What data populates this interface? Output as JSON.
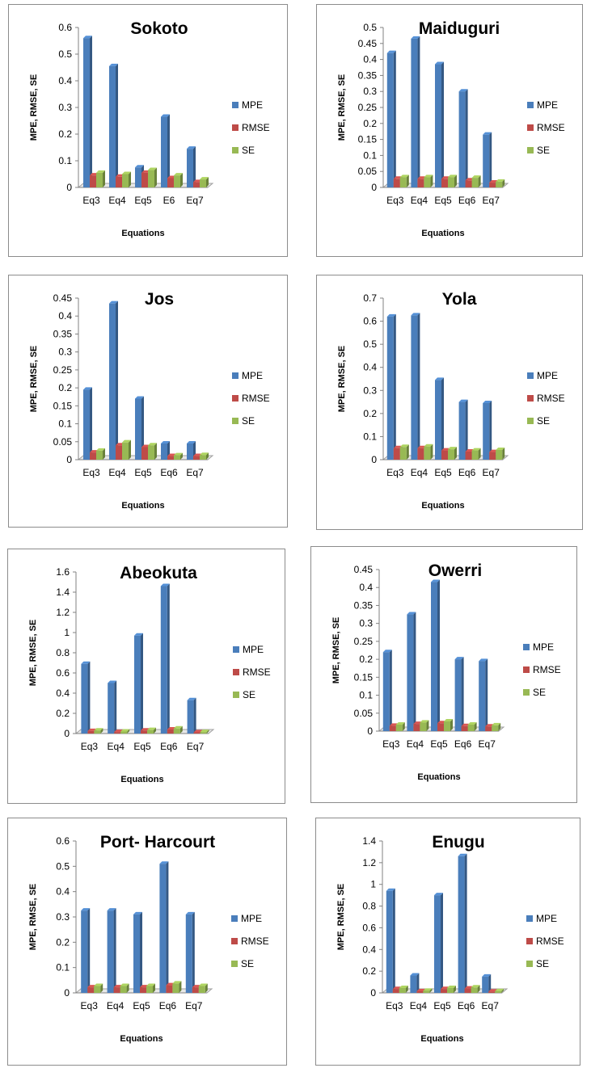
{
  "legend_colors": {
    "MPE": "#4a7ebb",
    "RMSE": "#be4b48",
    "SE": "#98b954"
  },
  "chart_data": [
    {
      "type": "bar",
      "title": "Sokoto",
      "xlabel": "Equations",
      "ylabel": "MPE, RMSE, SE",
      "categories": [
        "Eq3",
        "Eq4",
        "Eq5",
        "E6",
        "Eq7"
      ],
      "yticks": [
        "0",
        "0.1",
        "0.2",
        "0.3",
        "0.4",
        "0.5",
        "0.6"
      ],
      "ylim": [
        0,
        0.6
      ],
      "series": [
        {
          "name": "MPE",
          "values": [
            0.56,
            0.455,
            0.075,
            0.265,
            0.145
          ]
        },
        {
          "name": "RMSE",
          "values": [
            0.045,
            0.04,
            0.055,
            0.035,
            0.02
          ]
        },
        {
          "name": "SE",
          "values": [
            0.055,
            0.05,
            0.065,
            0.045,
            0.03
          ]
        }
      ]
    },
    {
      "type": "bar",
      "title": "Maiduguri",
      "xlabel": "Equations",
      "ylabel": "MPE, RMSE, SE",
      "categories": [
        "Eq3",
        "Eq4",
        "Eq5",
        "Eq6",
        "Eq7"
      ],
      "yticks": [
        "0",
        "0.05",
        "0.1",
        "0.15",
        "0.2",
        "0.25",
        "0.3",
        "0.35",
        "0.4",
        "0.45",
        "0.5"
      ],
      "ylim": [
        0,
        0.5
      ],
      "series": [
        {
          "name": "MPE",
          "values": [
            0.42,
            0.465,
            0.385,
            0.3,
            0.165
          ]
        },
        {
          "name": "RMSE",
          "values": [
            0.027,
            0.027,
            0.027,
            0.022,
            0.015
          ]
        },
        {
          "name": "SE",
          "values": [
            0.032,
            0.032,
            0.032,
            0.03,
            0.018
          ]
        }
      ]
    },
    {
      "type": "bar",
      "title": "Jos",
      "xlabel": "Equations",
      "ylabel": "MPE, RMSE, SE",
      "categories": [
        "Eq3",
        "Eq4",
        "Eq5",
        "Eq6",
        "Eq7"
      ],
      "yticks": [
        "0",
        "0.05",
        "0.1",
        "0.15",
        "0.2",
        "0.25",
        "0.3",
        "0.35",
        "0.4",
        "0.45"
      ],
      "ylim": [
        0,
        0.45
      ],
      "series": [
        {
          "name": "MPE",
          "values": [
            0.195,
            0.435,
            0.17,
            0.045,
            0.045
          ]
        },
        {
          "name": "RMSE",
          "values": [
            0.02,
            0.04,
            0.035,
            0.01,
            0.01
          ]
        },
        {
          "name": "SE",
          "values": [
            0.025,
            0.048,
            0.04,
            0.012,
            0.013
          ]
        }
      ]
    },
    {
      "type": "bar",
      "title": "Yola",
      "xlabel": "Equations",
      "ylabel": "MPE, RMSE, SE",
      "categories": [
        "Eq3",
        "Eq4",
        "Eq5",
        "Eq6",
        "Eq7"
      ],
      "yticks": [
        "0",
        "0.1",
        "0.2",
        "0.3",
        "0.4",
        "0.5",
        "0.6",
        "0.7"
      ],
      "ylim": [
        0,
        0.7
      ],
      "series": [
        {
          "name": "MPE",
          "values": [
            0.62,
            0.625,
            0.345,
            0.25,
            0.245
          ]
        },
        {
          "name": "RMSE",
          "values": [
            0.05,
            0.05,
            0.04,
            0.035,
            0.033
          ]
        },
        {
          "name": "SE",
          "values": [
            0.055,
            0.057,
            0.045,
            0.04,
            0.042
          ]
        }
      ]
    },
    {
      "type": "bar",
      "title": "Abeokuta",
      "xlabel": "Equations",
      "ylabel": "MPE, RMSE, SE",
      "categories": [
        "Eq3",
        "Eq4",
        "Eq5",
        "Eq6",
        "Eq7"
      ],
      "yticks": [
        "0",
        "0.2",
        "0.4",
        "0.6",
        "0.8",
        "1",
        "1.2",
        "1.4",
        "1.6"
      ],
      "ylim": [
        0,
        1.6
      ],
      "series": [
        {
          "name": "MPE",
          "values": [
            0.69,
            0.5,
            0.97,
            1.46,
            0.33
          ]
        },
        {
          "name": "RMSE",
          "values": [
            0.025,
            0.015,
            0.03,
            0.04,
            0.012
          ]
        },
        {
          "name": "SE",
          "values": [
            0.03,
            0.02,
            0.035,
            0.05,
            0.015
          ]
        }
      ]
    },
    {
      "type": "bar",
      "title": "Owerri",
      "xlabel": "Equations",
      "ylabel": "MPE, RMSE, SE",
      "categories": [
        "Eq3",
        "Eq4",
        "Eq5",
        "Eq6",
        "Eq7"
      ],
      "yticks": [
        "0",
        "0.05",
        "0.1",
        "0.15",
        "0.2",
        "0.25",
        "0.3",
        "0.35",
        "0.4",
        "0.45"
      ],
      "ylim": [
        0,
        0.45
      ],
      "series": [
        {
          "name": "MPE",
          "values": [
            0.22,
            0.325,
            0.415,
            0.2,
            0.195
          ]
        },
        {
          "name": "RMSE",
          "values": [
            0.015,
            0.02,
            0.022,
            0.014,
            0.013
          ]
        },
        {
          "name": "SE",
          "values": [
            0.018,
            0.024,
            0.027,
            0.018,
            0.016
          ]
        }
      ]
    },
    {
      "type": "bar",
      "title": "Port- Harcourt",
      "xlabel": "Equations",
      "ylabel": "MPE, RMSE, SE",
      "categories": [
        "Eq3",
        "Eq4",
        "Eq5",
        "Eq6",
        "Eq7"
      ],
      "yticks": [
        "0",
        "0.1",
        "0.2",
        "0.3",
        "0.4",
        "0.5",
        "0.6"
      ],
      "ylim": [
        0,
        0.6
      ],
      "series": [
        {
          "name": "MPE",
          "values": [
            0.325,
            0.325,
            0.31,
            0.51,
            0.31
          ]
        },
        {
          "name": "RMSE",
          "values": [
            0.022,
            0.022,
            0.022,
            0.03,
            0.022
          ]
        },
        {
          "name": "SE",
          "values": [
            0.027,
            0.027,
            0.027,
            0.037,
            0.027
          ]
        }
      ]
    },
    {
      "type": "bar",
      "title": "Enugu",
      "xlabel": "Equations",
      "ylabel": "MPE, RMSE, SE",
      "categories": [
        "Eq3",
        "Eq4",
        "Eq5",
        "Eq6",
        "Eq7"
      ],
      "yticks": [
        "0",
        "0.2",
        "0.4",
        "0.6",
        "0.8",
        "1",
        "1.2",
        "1.4"
      ],
      "ylim": [
        0,
        1.4
      ],
      "series": [
        {
          "name": "MPE",
          "values": [
            0.94,
            0.16,
            0.9,
            1.26,
            0.15
          ]
        },
        {
          "name": "RMSE",
          "values": [
            0.035,
            0.015,
            0.035,
            0.04,
            0.012
          ]
        },
        {
          "name": "SE",
          "values": [
            0.045,
            0.02,
            0.045,
            0.05,
            0.016
          ]
        }
      ]
    }
  ]
}
